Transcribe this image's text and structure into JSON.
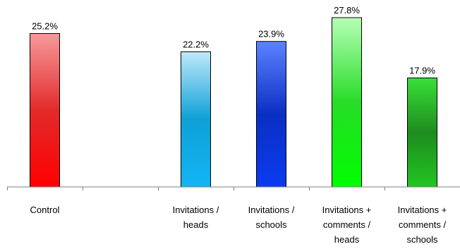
{
  "chart_data": {
    "type": "bar",
    "title": "",
    "xlabel": "",
    "ylabel": "",
    "ylim": [
      0,
      28.5
    ],
    "grid": false,
    "legend": "none",
    "categories": [
      [
        "Control"
      ],
      [],
      [
        "Invitations /",
        "heads"
      ],
      [
        "Invitations /",
        "schools"
      ],
      [
        "Invitations +",
        "comments /",
        "heads"
      ],
      [
        "Invitations +",
        "comments /",
        "schools"
      ]
    ],
    "values": [
      25.2,
      null,
      22.2,
      23.9,
      27.8,
      17.9
    ],
    "value_labels": [
      "25.2%",
      "",
      "22.2%",
      "23.9%",
      "27.8%",
      "17.9%"
    ],
    "bar_colors": [
      {
        "top": "#f79a9a",
        "mid": "#e32a2a",
        "bottom": "#ff0000"
      },
      null,
      {
        "top": "#bfe9fb",
        "mid": "#0fa0d6",
        "bottom": "#12b5f5"
      },
      {
        "top": "#5b83ff",
        "mid": "#0b2fc4",
        "bottom": "#0a3bf0"
      },
      {
        "top": "#b6ffb6",
        "mid": "#27dc27",
        "bottom": "#00ff00"
      },
      {
        "top": "#39e039",
        "mid": "#1e8c1e",
        "bottom": "#22c522"
      }
    ]
  }
}
